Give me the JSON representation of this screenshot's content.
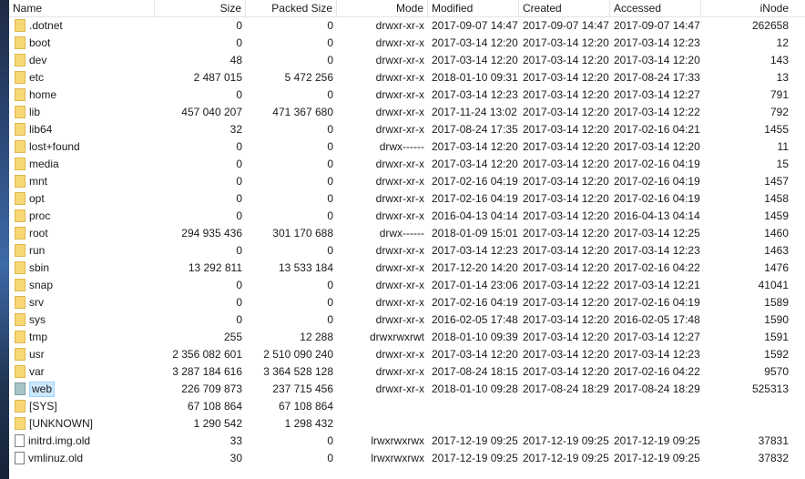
{
  "columns": {
    "name": "Name",
    "size": "Size",
    "packed": "Packed Size",
    "mode": "Mode",
    "modified": "Modified",
    "created": "Created",
    "accessed": "Accessed",
    "inode": "iNode"
  },
  "rows": [
    {
      "name": ".dotnet",
      "icon": "folder-icon",
      "size": "0",
      "packed": "0",
      "mode": "drwxr-xr-x",
      "modified": "2017-09-07 14:47",
      "created": "2017-09-07 14:47",
      "accessed": "2017-09-07 14:47",
      "inode": "262658"
    },
    {
      "name": "boot",
      "icon": "folder-icon",
      "size": "0",
      "packed": "0",
      "mode": "drwxr-xr-x",
      "modified": "2017-03-14 12:20",
      "created": "2017-03-14 12:20",
      "accessed": "2017-03-14 12:23",
      "inode": "12"
    },
    {
      "name": "dev",
      "icon": "folder-icon",
      "size": "48",
      "packed": "0",
      "mode": "drwxr-xr-x",
      "modified": "2017-03-14 12:20",
      "created": "2017-03-14 12:20",
      "accessed": "2017-03-14 12:20",
      "inode": "143"
    },
    {
      "name": "etc",
      "icon": "folder-icon",
      "size": "2 487 015",
      "packed": "5 472 256",
      "mode": "drwxr-xr-x",
      "modified": "2018-01-10 09:31",
      "created": "2017-03-14 12:20",
      "accessed": "2017-08-24 17:33",
      "inode": "13"
    },
    {
      "name": "home",
      "icon": "folder-icon",
      "size": "0",
      "packed": "0",
      "mode": "drwxr-xr-x",
      "modified": "2017-03-14 12:23",
      "created": "2017-03-14 12:20",
      "accessed": "2017-03-14 12:27",
      "inode": "791"
    },
    {
      "name": "lib",
      "icon": "folder-icon",
      "size": "457 040 207",
      "packed": "471 367 680",
      "mode": "drwxr-xr-x",
      "modified": "2017-11-24 13:02",
      "created": "2017-03-14 12:20",
      "accessed": "2017-03-14 12:22",
      "inode": "792"
    },
    {
      "name": "lib64",
      "icon": "folder-icon",
      "size": "32",
      "packed": "0",
      "mode": "drwxr-xr-x",
      "modified": "2017-08-24 17:35",
      "created": "2017-03-14 12:20",
      "accessed": "2017-02-16 04:21",
      "inode": "1455"
    },
    {
      "name": "lost+found",
      "icon": "folder-icon",
      "size": "0",
      "packed": "0",
      "mode": "drwx------",
      "modified": "2017-03-14 12:20",
      "created": "2017-03-14 12:20",
      "accessed": "2017-03-14 12:20",
      "inode": "11"
    },
    {
      "name": "media",
      "icon": "folder-icon",
      "size": "0",
      "packed": "0",
      "mode": "drwxr-xr-x",
      "modified": "2017-03-14 12:20",
      "created": "2017-03-14 12:20",
      "accessed": "2017-02-16 04:19",
      "inode": "15"
    },
    {
      "name": "mnt",
      "icon": "folder-icon",
      "size": "0",
      "packed": "0",
      "mode": "drwxr-xr-x",
      "modified": "2017-02-16 04:19",
      "created": "2017-03-14 12:20",
      "accessed": "2017-02-16 04:19",
      "inode": "1457"
    },
    {
      "name": "opt",
      "icon": "folder-icon",
      "size": "0",
      "packed": "0",
      "mode": "drwxr-xr-x",
      "modified": "2017-02-16 04:19",
      "created": "2017-03-14 12:20",
      "accessed": "2017-02-16 04:19",
      "inode": "1458"
    },
    {
      "name": "proc",
      "icon": "folder-icon",
      "size": "0",
      "packed": "0",
      "mode": "drwxr-xr-x",
      "modified": "2016-04-13 04:14",
      "created": "2017-03-14 12:20",
      "accessed": "2016-04-13 04:14",
      "inode": "1459"
    },
    {
      "name": "root",
      "icon": "folder-icon",
      "size": "294 935 436",
      "packed": "301 170 688",
      "mode": "drwx------",
      "modified": "2018-01-09 15:01",
      "created": "2017-03-14 12:20",
      "accessed": "2017-03-14 12:25",
      "inode": "1460"
    },
    {
      "name": "run",
      "icon": "folder-icon",
      "size": "0",
      "packed": "0",
      "mode": "drwxr-xr-x",
      "modified": "2017-03-14 12:23",
      "created": "2017-03-14 12:20",
      "accessed": "2017-03-14 12:23",
      "inode": "1463"
    },
    {
      "name": "sbin",
      "icon": "folder-icon",
      "size": "13 292 811",
      "packed": "13 533 184",
      "mode": "drwxr-xr-x",
      "modified": "2017-12-20 14:20",
      "created": "2017-03-14 12:20",
      "accessed": "2017-02-16 04:22",
      "inode": "1476"
    },
    {
      "name": "snap",
      "icon": "folder-icon",
      "size": "0",
      "packed": "0",
      "mode": "drwxr-xr-x",
      "modified": "2017-01-14 23:06",
      "created": "2017-03-14 12:22",
      "accessed": "2017-03-14 12:21",
      "inode": "41041"
    },
    {
      "name": "srv",
      "icon": "folder-icon",
      "size": "0",
      "packed": "0",
      "mode": "drwxr-xr-x",
      "modified": "2017-02-16 04:19",
      "created": "2017-03-14 12:20",
      "accessed": "2017-02-16 04:19",
      "inode": "1589"
    },
    {
      "name": "sys",
      "icon": "folder-icon",
      "size": "0",
      "packed": "0",
      "mode": "drwxr-xr-x",
      "modified": "2016-02-05 17:48",
      "created": "2017-03-14 12:20",
      "accessed": "2016-02-05 17:48",
      "inode": "1590"
    },
    {
      "name": "tmp",
      "icon": "folder-icon",
      "size": "255",
      "packed": "12 288",
      "mode": "drwxrwxrwt",
      "modified": "2018-01-10 09:39",
      "created": "2017-03-14 12:20",
      "accessed": "2017-03-14 12:27",
      "inode": "1591"
    },
    {
      "name": "usr",
      "icon": "folder-icon",
      "size": "2 356 082 601",
      "packed": "2 510 090 240",
      "mode": "drwxr-xr-x",
      "modified": "2017-03-14 12:20",
      "created": "2017-03-14 12:20",
      "accessed": "2017-03-14 12:23",
      "inode": "1592"
    },
    {
      "name": "var",
      "icon": "folder-icon",
      "size": "3 287 184 616",
      "packed": "3 364 528 128",
      "mode": "drwxr-xr-x",
      "modified": "2017-08-24 18:15",
      "created": "2017-03-14 12:20",
      "accessed": "2017-02-16 04:22",
      "inode": "9570"
    },
    {
      "name": "web",
      "icon": "folder-special-icon",
      "selected": true,
      "size": "226 709 873",
      "packed": "237 715 456",
      "mode": "drwxr-xr-x",
      "modified": "2018-01-10 09:28",
      "created": "2017-08-24 18:29",
      "accessed": "2017-08-24 18:29",
      "inode": "525313"
    },
    {
      "name": "[SYS]",
      "icon": "folder-icon",
      "size": "67 108 864",
      "packed": "67 108 864",
      "mode": "",
      "modified": "",
      "created": "",
      "accessed": "",
      "inode": ""
    },
    {
      "name": "[UNKNOWN]",
      "icon": "folder-icon",
      "size": "1 290 542",
      "packed": "1 298 432",
      "mode": "",
      "modified": "",
      "created": "",
      "accessed": "",
      "inode": ""
    },
    {
      "name": "initrd.img.old",
      "icon": "file-icon",
      "size": "33",
      "packed": "0",
      "mode": "lrwxrwxrwx",
      "modified": "2017-12-19 09:25",
      "created": "2017-12-19 09:25",
      "accessed": "2017-12-19 09:25",
      "inode": "37831"
    },
    {
      "name": "vmlinuz.old",
      "icon": "file-icon",
      "size": "30",
      "packed": "0",
      "mode": "lrwxrwxrwx",
      "modified": "2017-12-19 09:25",
      "created": "2017-12-19 09:25",
      "accessed": "2017-12-19 09:25",
      "inode": "37832"
    }
  ]
}
